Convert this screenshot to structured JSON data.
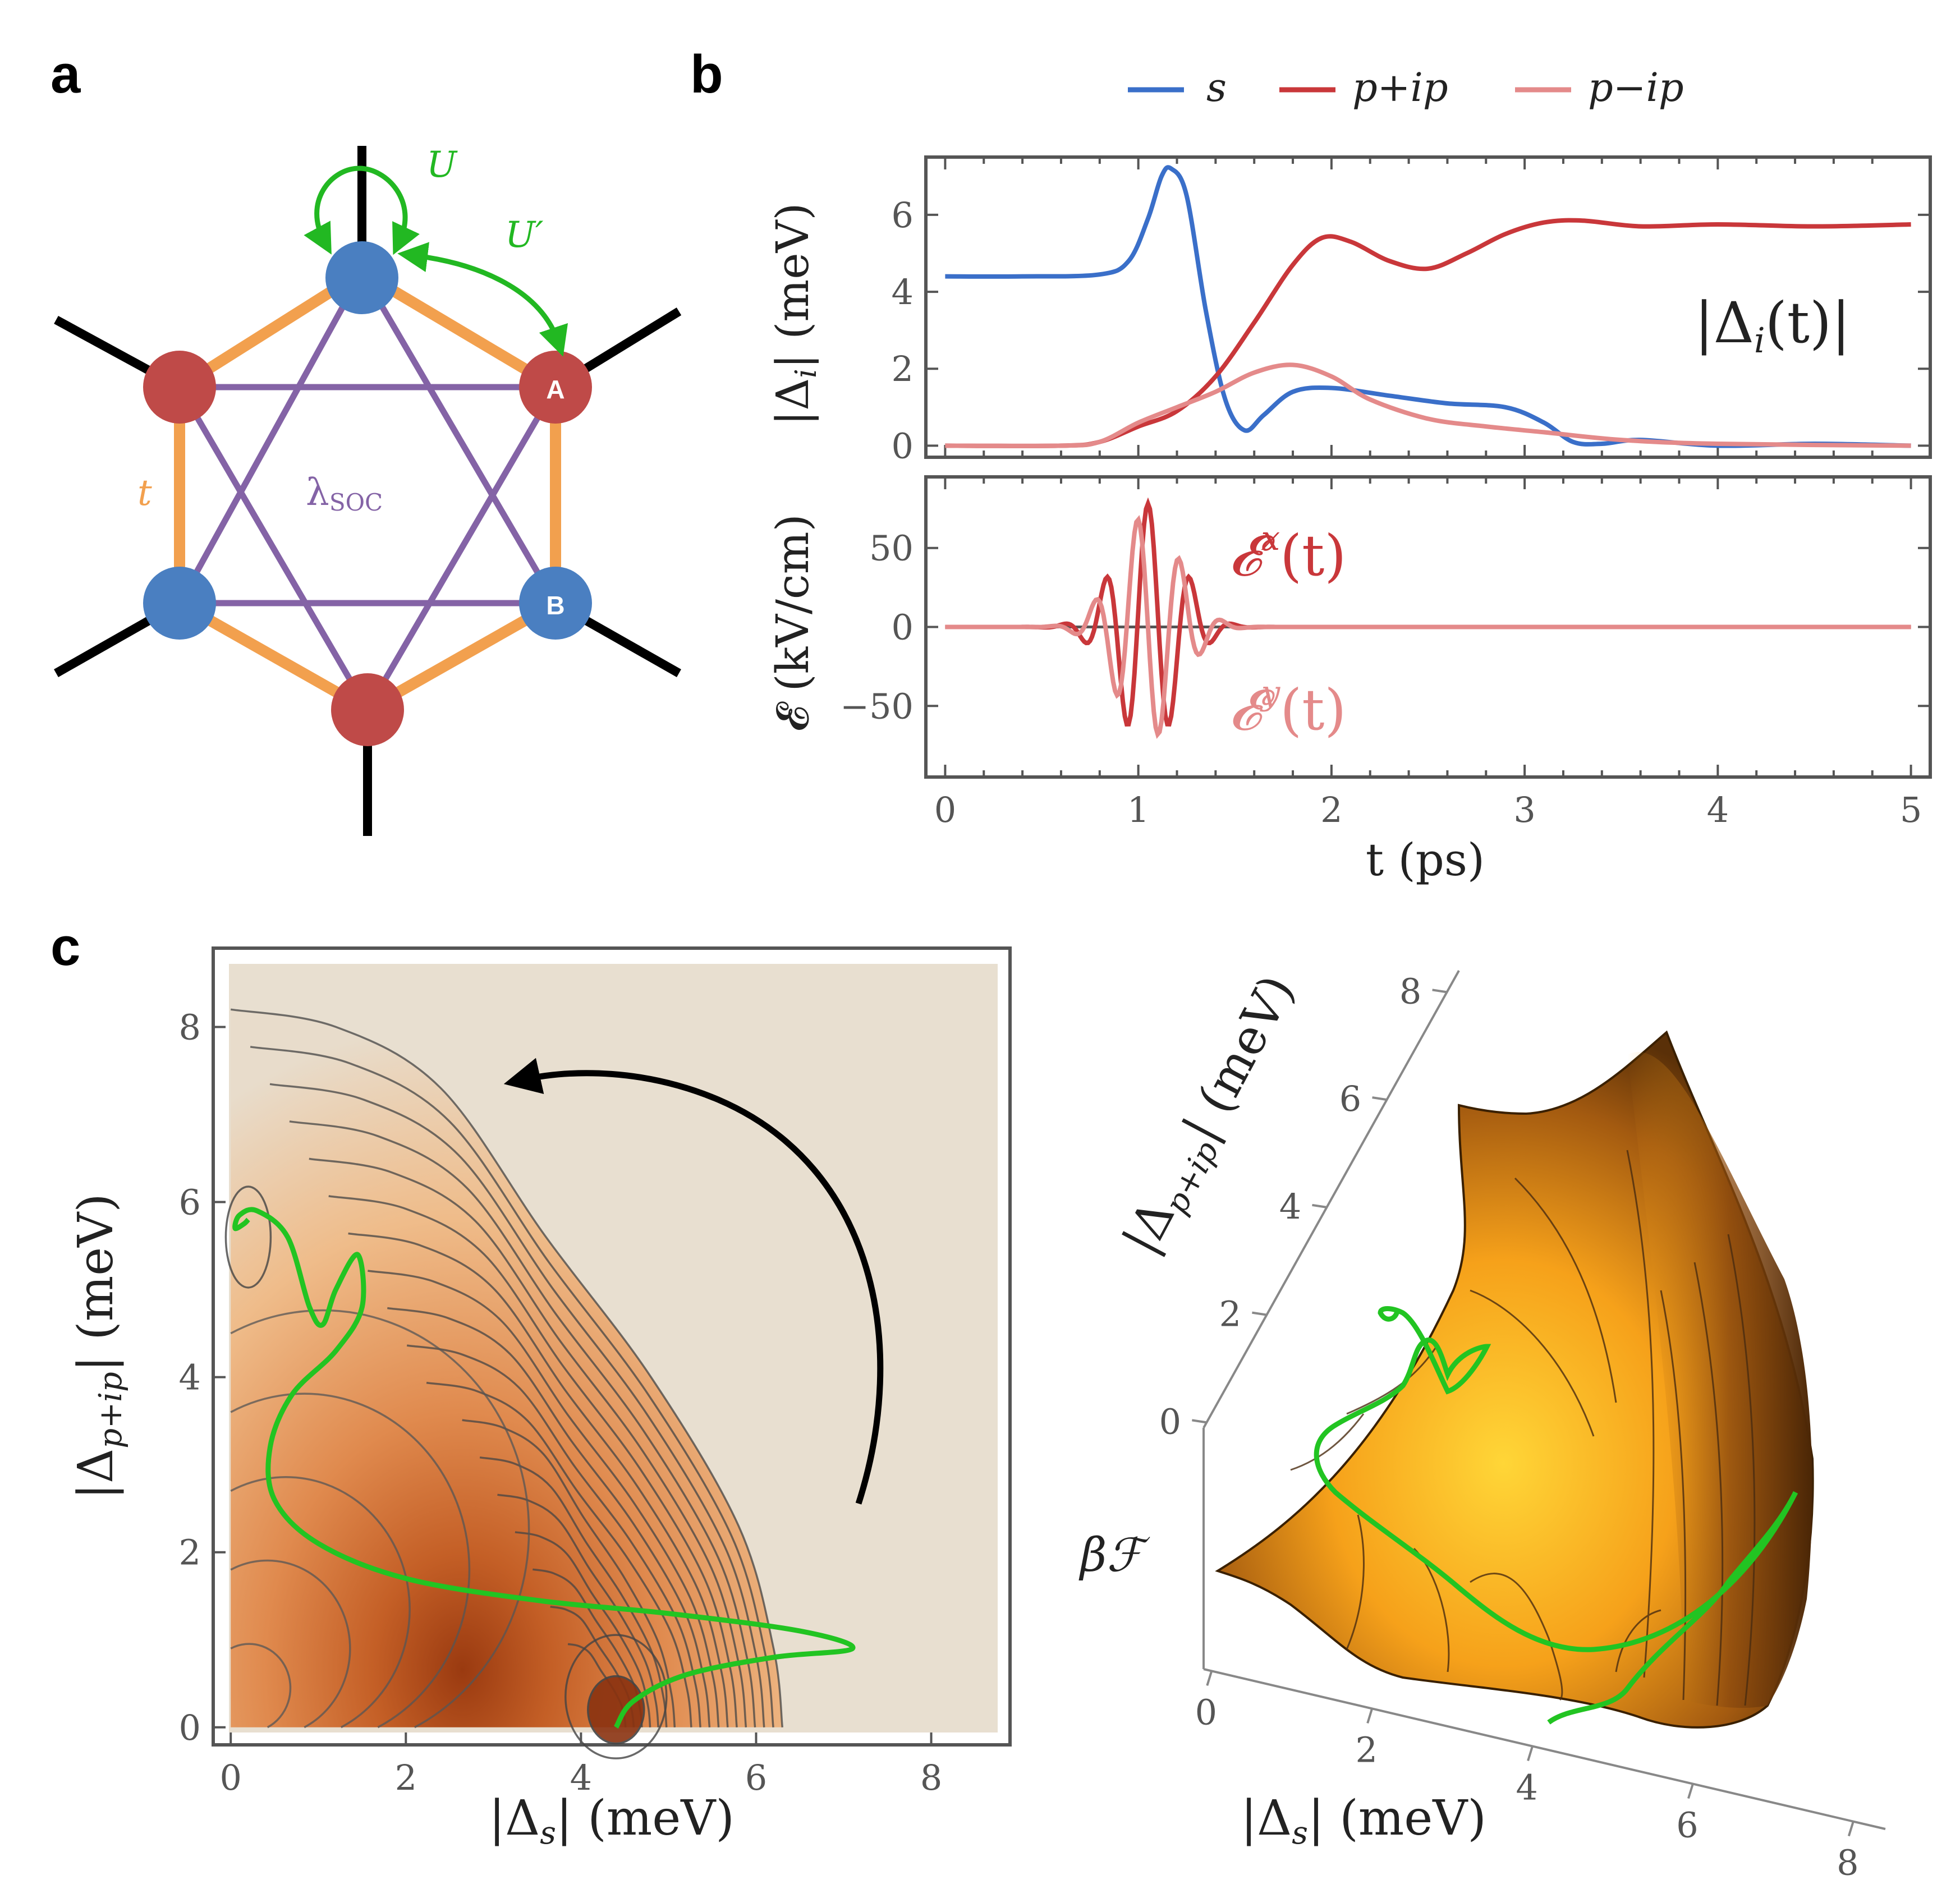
{
  "panels": {
    "a": "a",
    "b": "b",
    "c": "c"
  },
  "lattice": {
    "U": "U",
    "U_prime": "U′",
    "t": "t",
    "lambda_soc_sym": "λ",
    "lambda_soc_sub": "SOC",
    "site_A": "A",
    "site_B": "B",
    "colors": {
      "blue": "#4a7fc1",
      "red": "#bf4a48",
      "orange": "#f2a04e",
      "purple": "#8463a6",
      "green": "#22b822"
    }
  },
  "chart_data": [
    {
      "type": "line",
      "id": "gap-amplitudes",
      "legend": [
        {
          "name": "s",
          "color": "#3a6fc9"
        },
        {
          "name": "p+ip",
          "color": "#c9373a"
        },
        {
          "name": "p−ip",
          "color": "#e48a8a"
        }
      ],
      "annotation": "|Δ",
      "annotation_sub": "i",
      "annotation_tail": "(t)|",
      "ylabel": "|Δ",
      "ylabel_sub": "i",
      "ylabel_unit": "|  (meV)",
      "xlim": [
        -0.1,
        5.1
      ],
      "ylim": [
        -0.3,
        7.5
      ],
      "yticks": [
        "0",
        "2",
        "4",
        "6"
      ],
      "series": [
        {
          "name": "s",
          "x": [
            0,
            0.4,
            0.8,
            0.95,
            1.05,
            1.12,
            1.17,
            1.25,
            1.35,
            1.45,
            1.55,
            1.65,
            1.8,
            2.0,
            2.3,
            2.6,
            2.9,
            3.1,
            3.25,
            3.4,
            3.6,
            4.0,
            4.5,
            5.0
          ],
          "y": [
            4.4,
            4.4,
            4.45,
            4.8,
            5.9,
            7.0,
            7.2,
            6.5,
            3.5,
            1.2,
            0.4,
            0.8,
            1.4,
            1.5,
            1.3,
            1.1,
            1.0,
            0.6,
            0.1,
            0.05,
            0.15,
            0.0,
            0.05,
            0.0
          ]
        },
        {
          "name": "p+ip",
          "x": [
            0,
            0.6,
            0.8,
            1.0,
            1.2,
            1.4,
            1.6,
            1.8,
            1.95,
            2.1,
            2.3,
            2.5,
            2.7,
            2.9,
            3.1,
            3.3,
            3.6,
            4.0,
            4.5,
            5.0
          ],
          "y": [
            0.0,
            0.0,
            0.1,
            0.5,
            0.9,
            1.8,
            3.2,
            4.7,
            5.4,
            5.3,
            4.8,
            4.6,
            5.0,
            5.5,
            5.8,
            5.85,
            5.7,
            5.75,
            5.7,
            5.75
          ]
        },
        {
          "name": "p−ip",
          "x": [
            0,
            0.6,
            0.8,
            1.0,
            1.2,
            1.4,
            1.6,
            1.8,
            2.0,
            2.2,
            2.5,
            2.8,
            3.1,
            3.5,
            4.0,
            5.0
          ],
          "y": [
            0.0,
            0.0,
            0.1,
            0.6,
            1.0,
            1.4,
            1.9,
            2.1,
            1.8,
            1.2,
            0.7,
            0.5,
            0.35,
            0.15,
            0.05,
            0.0
          ]
        }
      ]
    },
    {
      "type": "line",
      "id": "field-pulse",
      "xlabel": "t (ps)",
      "xticks": [
        "0",
        "1",
        "2",
        "3",
        "4",
        "5"
      ],
      "ylabel": "𝓔  (kV/cm)",
      "yticks": [
        "50",
        "0",
        "−50"
      ],
      "xlim": [
        -0.1,
        5.1
      ],
      "ylim": [
        -95,
        95
      ],
      "labels": {
        "ex": "𝓔",
        "ex_sup": "x",
        "ex_tail": "(t)",
        "ey": "𝓔",
        "ey_sup": "y",
        "ey_tail": "(t)"
      },
      "series": [
        {
          "name": "Ex",
          "color": "#c9373a",
          "center": 1.05,
          "sigma": 0.16,
          "period": 0.22,
          "amplitude": 78,
          "phase": 0.0
        },
        {
          "name": "Ey",
          "color": "#e48a8a",
          "center": 1.05,
          "sigma": 0.16,
          "period": 0.22,
          "amplitude": 72,
          "phase": 1.5708
        }
      ]
    },
    {
      "type": "contour",
      "id": "free-energy-2d",
      "xlabel": "|Δ",
      "xlabel_sub": "s",
      "xlabel_unit": "|  (meV)",
      "ylabel": "|Δ",
      "ylabel_sub": "p+ip",
      "ylabel_unit": "|  (meV)",
      "xlim": [
        -0.2,
        8.9
      ],
      "ylim": [
        -0.2,
        8.9
      ],
      "xticks": [
        "0",
        "2",
        "4",
        "6",
        "8"
      ],
      "yticks": [
        "0",
        "2",
        "4",
        "6",
        "8"
      ],
      "trajectory": {
        "color": "#22c422",
        "x": [
          4.4,
          4.6,
          5.2,
          6.2,
          7.1,
          6.5,
          5.0,
          3.5,
          2.0,
          1.0,
          0.5,
          0.45,
          0.7,
          1.2,
          1.5,
          1.45,
          1.2,
          1.05,
          0.9,
          0.65,
          0.3,
          0.1,
          0.05,
          0.15,
          0.2
        ],
        "y": [
          0.0,
          0.3,
          0.6,
          0.8,
          0.9,
          1.1,
          1.3,
          1.45,
          1.7,
          2.1,
          2.6,
          3.2,
          3.8,
          4.3,
          4.8,
          5.4,
          5.0,
          4.6,
          4.8,
          5.6,
          5.9,
          5.85,
          5.7,
          5.75,
          5.8
        ]
      }
    },
    {
      "type": "surface",
      "id": "free-energy-3d",
      "zlabel": "βℱ",
      "xlabel": "|Δ",
      "xlabel_sub": "s",
      "xlabel_unit": "|  (meV)",
      "ylabel": "|Δ",
      "ylabel_sub": "p+ip",
      "ylabel_unit": "|  (meV)",
      "xticks": [
        "0",
        "2",
        "4",
        "6",
        "8"
      ],
      "yticks": [
        "0",
        "2",
        "4",
        "6",
        "8"
      ]
    }
  ]
}
